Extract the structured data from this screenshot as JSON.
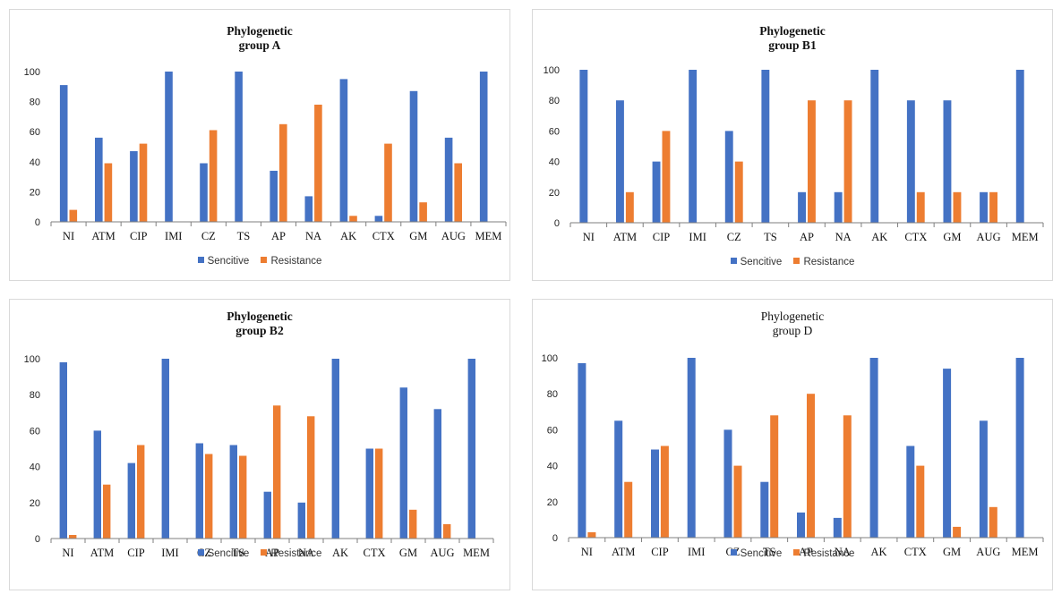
{
  "legend": {
    "sensitive": "Sencitive",
    "resistance": "Resistance"
  },
  "colors": {
    "sensitive": "#4472C4",
    "resistance": "#ED7D31",
    "axis": "#7f7f7f",
    "border": "#d9d9d9"
  },
  "chart_data": [
    {
      "type": "bar",
      "title_line1": "Phylogenetic",
      "title_line2": "group A",
      "title_bold": true,
      "categories": [
        "NI",
        "ATM",
        "CIP",
        "IMI",
        "CZ",
        "TS",
        "AP",
        "NA",
        "AK",
        "CTX",
        "GM",
        "AUG",
        "MEM"
      ],
      "ylim": [
        0,
        100
      ],
      "yticks": [
        "0",
        "20",
        "40",
        "60",
        "80",
        "100"
      ],
      "series": [
        {
          "name": "Sencitive",
          "values": [
            91,
            56,
            47,
            100,
            39,
            100,
            34,
            17,
            95,
            4,
            87,
            56,
            100
          ]
        },
        {
          "name": "Resistance",
          "values": [
            8,
            39,
            52,
            0,
            61,
            0,
            65,
            78,
            4,
            52,
            13,
            39,
            0
          ]
        }
      ],
      "legend_position": "bottom",
      "grid": false
    },
    {
      "type": "bar",
      "title_line1": "Phylogenetic",
      "title_line2": "group B1",
      "title_bold": true,
      "categories": [
        "NI",
        "ATM",
        "CIP",
        "IMI",
        "CZ",
        "TS",
        "AP",
        "NA",
        "AK",
        "CTX",
        "GM",
        "AUG",
        "MEM"
      ],
      "ylim": [
        0,
        100
      ],
      "yticks": [
        "0",
        "20",
        "40",
        "60",
        "80",
        "100"
      ],
      "series": [
        {
          "name": "Sencitive",
          "values": [
            100,
            80,
            40,
            100,
            60,
            100,
            20,
            20,
            100,
            80,
            80,
            20,
            100
          ]
        },
        {
          "name": "Resistance",
          "values": [
            0,
            20,
            60,
            0,
            40,
            0,
            80,
            80,
            0,
            20,
            20,
            20,
            0
          ]
        }
      ],
      "legend_position": "bottom",
      "grid": false
    },
    {
      "type": "bar",
      "title_line1": "Phylogenetic",
      "title_line2": "group B2",
      "title_bold": true,
      "categories": [
        "NI",
        "ATM",
        "CIP",
        "IMI",
        "CZ",
        "TS",
        "AP",
        "NA",
        "AK",
        "CTX",
        "GM",
        "AUG",
        "MEM"
      ],
      "ylim": [
        0,
        100
      ],
      "yticks": [
        "0",
        "20",
        "40",
        "60",
        "80",
        "100"
      ],
      "series": [
        {
          "name": "Sencitive",
          "values": [
            98,
            60,
            42,
            100,
            53,
            52,
            26,
            20,
            100,
            50,
            84,
            72,
            100
          ]
        },
        {
          "name": "Resistance",
          "values": [
            2,
            30,
            52,
            0,
            47,
            46,
            74,
            68,
            0,
            50,
            16,
            8,
            0
          ]
        }
      ],
      "legend_position": "bottom",
      "grid": false
    },
    {
      "type": "bar",
      "title_line1": "Phylogenetic",
      "title_line2": "group D",
      "title_bold": false,
      "categories": [
        "NI",
        "ATM",
        "CIP",
        "IMI",
        "CZ",
        "TS",
        "AP",
        "NA",
        "AK",
        "CTX",
        "GM",
        "AUG",
        "MEM"
      ],
      "ylim": [
        0,
        100
      ],
      "yticks": [
        "0",
        "20",
        "40",
        "60",
        "80",
        "100"
      ],
      "series": [
        {
          "name": "Sencitive",
          "values": [
            97,
            65,
            49,
            100,
            60,
            31,
            14,
            11,
            100,
            51,
            94,
            65,
            100
          ]
        },
        {
          "name": "Resistance",
          "values": [
            3,
            31,
            51,
            0,
            40,
            68,
            80,
            68,
            0,
            40,
            6,
            17,
            0
          ]
        }
      ],
      "legend_position": "bottom",
      "grid": false
    }
  ]
}
